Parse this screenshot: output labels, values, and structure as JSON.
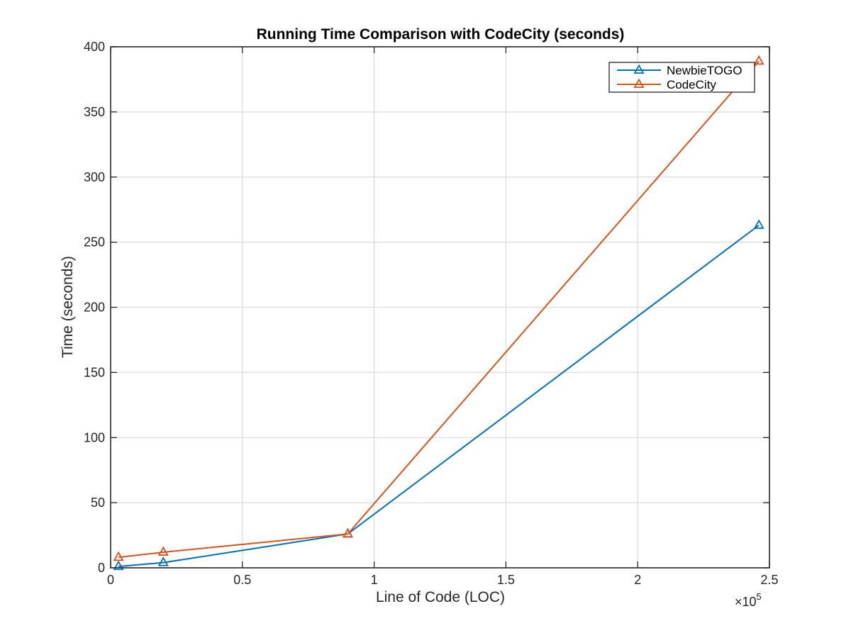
{
  "chart_data": {
    "type": "line",
    "title": "Running Time Comparison with CodeCity (seconds)",
    "xlabel": "Line of Code (LOC)",
    "ylabel": "Time (seconds)",
    "x_exponent_label": "×10",
    "x_exponent_power": "5",
    "xlim": [
      0,
      250000
    ],
    "ylim": [
      0,
      400
    ],
    "x_ticks": [
      0,
      50000,
      100000,
      150000,
      200000,
      250000
    ],
    "x_tick_labels": [
      "0",
      "0.5",
      "1",
      "1.5",
      "2",
      "2.5"
    ],
    "y_ticks": [
      0,
      50,
      100,
      150,
      200,
      250,
      300,
      350,
      400
    ],
    "y_tick_labels": [
      "0",
      "50",
      "100",
      "150",
      "200",
      "250",
      "300",
      "350",
      "400"
    ],
    "grid": true,
    "legend_position": "top-right",
    "marker": "triangle",
    "series": [
      {
        "name": "NewbieTOGO",
        "color": "#0072bd",
        "x": [
          3000,
          20000,
          90000,
          246000
        ],
        "y": [
          1,
          4,
          26,
          263
        ]
      },
      {
        "name": "CodeCity",
        "color": "#d95319",
        "x": [
          3000,
          20000,
          90000,
          246000
        ],
        "y": [
          8,
          12,
          26,
          389
        ]
      }
    ]
  }
}
